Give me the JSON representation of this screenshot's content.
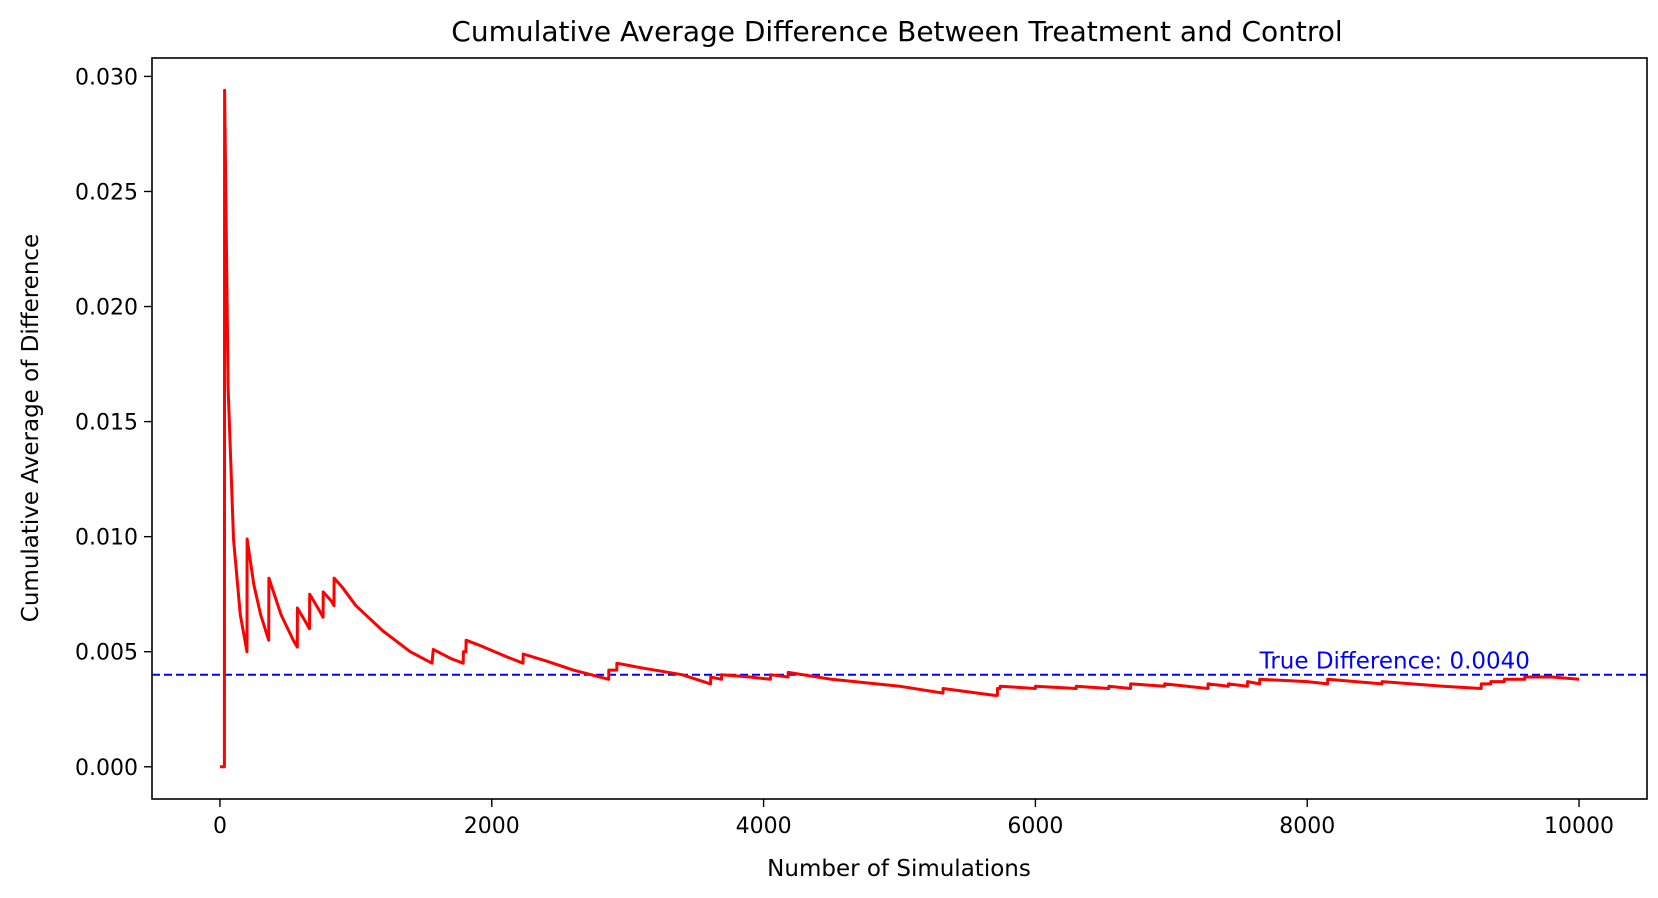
{
  "chart_data": {
    "type": "line",
    "title": "Cumulative Average Difference Between Treatment and Control",
    "xlabel": "Number of Simulations",
    "ylabel": "Cumulative Average of Difference",
    "xlim": [
      -500,
      10500
    ],
    "ylim": [
      -0.0014,
      0.0308
    ],
    "x_ticks": [
      0,
      2000,
      4000,
      6000,
      8000,
      10000
    ],
    "x_tick_labels": [
      "0",
      "2000",
      "4000",
      "6000",
      "8000",
      "10000"
    ],
    "y_ticks": [
      0.0,
      0.005,
      0.01,
      0.015,
      0.02,
      0.025,
      0.03
    ],
    "y_tick_labels": [
      "0.000",
      "0.005",
      "0.010",
      "0.015",
      "0.020",
      "0.025",
      "0.030"
    ],
    "grid": false,
    "series": [
      {
        "color": "#ff0000",
        "style": "solid",
        "points": [
          [
            0,
            0.0
          ],
          [
            33,
            0.0
          ],
          [
            34,
            0.0294
          ],
          [
            60,
            0.0165
          ],
          [
            100,
            0.0099
          ],
          [
            150,
            0.0066
          ],
          [
            199,
            0.005
          ],
          [
            200,
            0.0099
          ],
          [
            250,
            0.0079
          ],
          [
            300,
            0.0066
          ],
          [
            359,
            0.0055
          ],
          [
            360,
            0.0082
          ],
          [
            450,
            0.0066
          ],
          [
            540,
            0.0055
          ],
          [
            569,
            0.0052
          ],
          [
            570,
            0.0069
          ],
          [
            620,
            0.0064
          ],
          [
            659,
            0.006
          ],
          [
            660,
            0.0075
          ],
          [
            730,
            0.0068
          ],
          [
            759,
            0.0065
          ],
          [
            760,
            0.0076
          ],
          [
            820,
            0.0072
          ],
          [
            839,
            0.007
          ],
          [
            840,
            0.0082
          ],
          [
            900,
            0.0078
          ],
          [
            1000,
            0.007
          ],
          [
            1200,
            0.0059
          ],
          [
            1400,
            0.005
          ],
          [
            1560,
            0.0045
          ],
          [
            1570,
            0.0051
          ],
          [
            1700,
            0.0047
          ],
          [
            1790,
            0.0045
          ],
          [
            1791,
            0.005
          ],
          [
            1810,
            0.005
          ],
          [
            1811,
            0.0055
          ],
          [
            1900,
            0.0053
          ],
          [
            2100,
            0.0048
          ],
          [
            2230,
            0.0045
          ],
          [
            2231,
            0.0049
          ],
          [
            2400,
            0.0046
          ],
          [
            2600,
            0.0042
          ],
          [
            2860,
            0.0038
          ],
          [
            2861,
            0.0042
          ],
          [
            2920,
            0.0042
          ],
          [
            2921,
            0.0045
          ],
          [
            3100,
            0.0043
          ],
          [
            3400,
            0.004
          ],
          [
            3610,
            0.0036
          ],
          [
            3611,
            0.0039
          ],
          [
            3690,
            0.0038
          ],
          [
            3691,
            0.004
          ],
          [
            3900,
            0.0039
          ],
          [
            4050,
            0.0038
          ],
          [
            4051,
            0.004
          ],
          [
            4180,
            0.0039
          ],
          [
            4181,
            0.0041
          ],
          [
            4500,
            0.0038
          ],
          [
            5000,
            0.0035
          ],
          [
            5320,
            0.0032
          ],
          [
            5321,
            0.0034
          ],
          [
            5700,
            0.0031
          ],
          [
            5720,
            0.0031
          ],
          [
            5721,
            0.0034
          ],
          [
            5740,
            0.0034
          ],
          [
            5741,
            0.0035
          ],
          [
            6000,
            0.0034
          ],
          [
            6001,
            0.0035
          ],
          [
            6300,
            0.0034
          ],
          [
            6301,
            0.0035
          ],
          [
            6540,
            0.0034
          ],
          [
            6541,
            0.0035
          ],
          [
            6700,
            0.0034
          ],
          [
            6701,
            0.0036
          ],
          [
            6950,
            0.0035
          ],
          [
            6951,
            0.0036
          ],
          [
            7270,
            0.0034
          ],
          [
            7271,
            0.0036
          ],
          [
            7420,
            0.0035
          ],
          [
            7421,
            0.0036
          ],
          [
            7560,
            0.0035
          ],
          [
            7561,
            0.0037
          ],
          [
            7650,
            0.0036
          ],
          [
            7651,
            0.0038
          ],
          [
            8000,
            0.0037
          ],
          [
            8150,
            0.0036
          ],
          [
            8151,
            0.0038
          ],
          [
            8550,
            0.0036
          ],
          [
            8551,
            0.0037
          ],
          [
            9000,
            0.0035
          ],
          [
            9280,
            0.0034
          ],
          [
            9281,
            0.0036
          ],
          [
            9350,
            0.0036
          ],
          [
            9351,
            0.0037
          ],
          [
            9450,
            0.0037
          ],
          [
            9451,
            0.0038
          ],
          [
            9600,
            0.0038
          ],
          [
            9601,
            0.0039
          ],
          [
            9800,
            0.0039
          ],
          [
            10000,
            0.0038
          ]
        ]
      }
    ],
    "reference_line": {
      "y": 0.004,
      "color": "#0000ff",
      "style": "dashed"
    },
    "annotation": {
      "text": "True Difference: 0.0040",
      "x": 7650,
      "y": 0.004,
      "color": "#0000ff"
    }
  }
}
